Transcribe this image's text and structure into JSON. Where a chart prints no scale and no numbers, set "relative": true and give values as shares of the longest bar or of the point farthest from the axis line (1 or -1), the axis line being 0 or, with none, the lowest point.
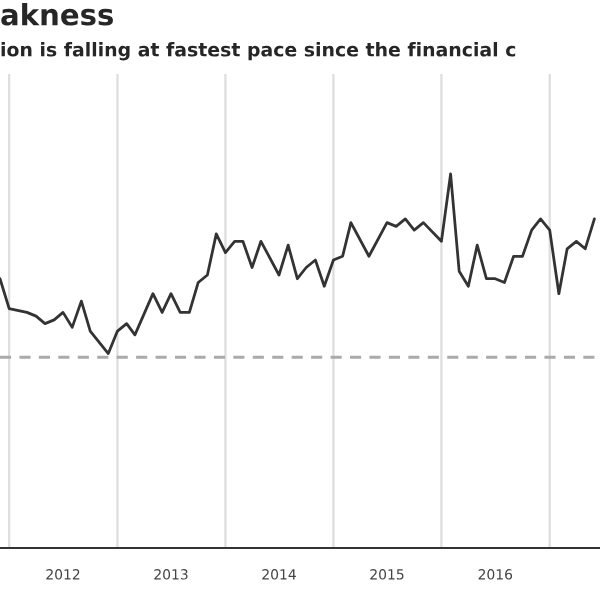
{
  "chart_data": {
    "type": "line",
    "title": "akness",
    "subtitle": "ion is falling at fastest pace since the financial c",
    "relative": true,
    "grid": "x",
    "x": [
      "2011-12",
      "2012-01",
      "2012-03",
      "2012-04",
      "2012-05",
      "2012-06",
      "2012-07",
      "2012-08",
      "2012-09",
      "2012-10",
      "2012-12",
      "2013-01",
      "2013-02",
      "2013-03",
      "2013-05",
      "2013-06",
      "2013-07",
      "2013-08",
      "2013-09",
      "2013-10",
      "2013-11",
      "2013-12",
      "2014-01",
      "2014-02",
      "2014-03",
      "2014-04",
      "2014-05",
      "2014-07",
      "2014-08",
      "2014-09",
      "2014-10",
      "2014-11",
      "2014-12",
      "2015-01",
      "2015-02",
      "2015-03",
      "2015-05",
      "2015-07",
      "2015-08",
      "2015-09",
      "2015-10",
      "2015-11",
      "2016-01",
      "2016-02",
      "2016-03",
      "2016-04",
      "2016-05",
      "2016-06",
      "2016-07",
      "2016-08",
      "2016-09",
      "2016-10",
      "2016-11",
      "2016-12",
      "2017-01",
      "2017-02",
      "2017-03",
      "2017-04",
      "2017-05",
      "2017-06"
    ],
    "series": [
      {
        "color": "#333333",
        "values": [
          0.72,
          0.64,
          0.63,
          0.62,
          0.6,
          0.61,
          0.63,
          0.59,
          0.66,
          0.58,
          0.52,
          0.58,
          0.6,
          0.57,
          0.68,
          0.63,
          0.68,
          0.63,
          0.63,
          0.71,
          0.73,
          0.84,
          0.79,
          0.82,
          0.82,
          0.75,
          0.82,
          0.73,
          0.81,
          0.72,
          0.75,
          0.77,
          0.7,
          0.77,
          0.78,
          0.87,
          0.78,
          0.87,
          0.86,
          0.88,
          0.85,
          0.87,
          0.82,
          1.0,
          0.74,
          0.7,
          0.81,
          0.72,
          0.72,
          0.71,
          0.78,
          0.78,
          0.85,
          0.88,
          0.85,
          0.68,
          0.8,
          0.82,
          0.8,
          0.88
        ]
      }
    ],
    "xlim": [
      "2011-12-01",
      "2017-06-20"
    ],
    "xticks": [
      {
        "value": "2012",
        "label": null
      },
      {
        "value": "2012-07",
        "label": "2012"
      },
      {
        "value": "2013",
        "label": null
      },
      {
        "value": "2013-07",
        "label": "2013"
      },
      {
        "value": "2014",
        "label": null
      },
      {
        "value": "2014-07",
        "label": "2014"
      },
      {
        "value": "2015",
        "label": null
      },
      {
        "value": "2015-07",
        "label": "2015"
      },
      {
        "value": "2016",
        "label": null
      },
      {
        "value": "2016-07",
        "label": "2016"
      },
      {
        "value": "2017",
        "label": null
      }
    ],
    "ref_lines": [
      {
        "axis": "y",
        "value": 0.51,
        "color": "#aaaaaa",
        "line_style": "dashed"
      }
    ],
    "line_style": "solid",
    "marker": "none"
  }
}
